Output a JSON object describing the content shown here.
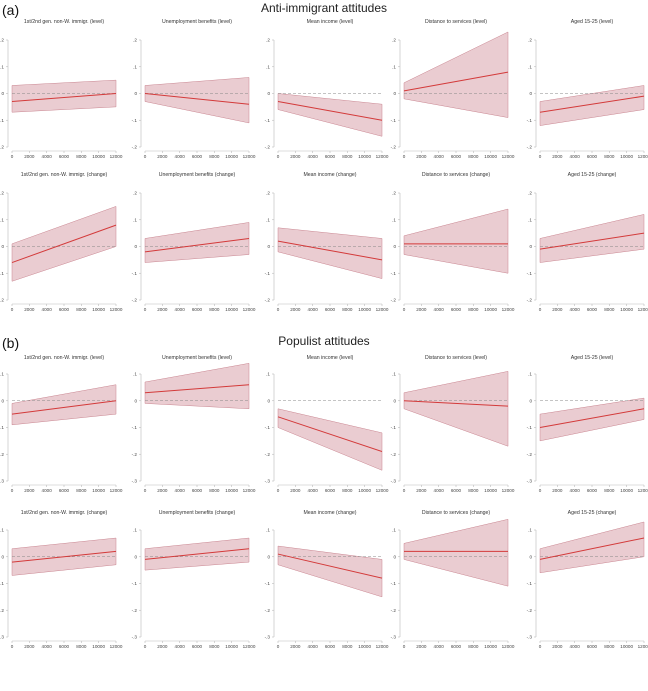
{
  "figure": {
    "sections": [
      {
        "label": "(a)",
        "title": "Anti-immigrant attitudes"
      },
      {
        "label": "(b)",
        "title": "Populist attitudes"
      }
    ]
  },
  "style": {
    "line_color": "#d33a3a",
    "band_color": "#d9a3ab",
    "band_stroke": "#c98590",
    "zero_line_color": "#888888",
    "axis_color": "#bbbbbb"
  },
  "chart_data": [
    {
      "type": "line",
      "section": "(a)",
      "title": "1st/2nd gen. non-W. immigr. (level)",
      "x": [
        0,
        12000
      ],
      "y": [
        -0.03,
        0.0
      ],
      "ci_lower": [
        -0.07,
        -0.05
      ],
      "ci_upper": [
        0.03,
        0.05
      ],
      "ylim": [
        -0.2,
        0.2
      ],
      "yticks": [
        -0.2,
        -0.1,
        0,
        0.1,
        0.2
      ],
      "ytick_labels": [
        "-.2",
        "-.1",
        "0",
        ".1",
        ".2"
      ],
      "xticks": [
        0,
        2000,
        4000,
        6000,
        8000,
        10000,
        12000
      ]
    },
    {
      "type": "line",
      "section": "(a)",
      "title": "Unemployment benefits (level)",
      "x": [
        0,
        12000
      ],
      "y": [
        0.0,
        -0.04
      ],
      "ci_lower": [
        -0.03,
        -0.11
      ],
      "ci_upper": [
        0.03,
        0.06
      ],
      "ylim": [
        -0.2,
        0.2
      ],
      "yticks": [
        -0.2,
        -0.1,
        0,
        0.1,
        0.2
      ],
      "ytick_labels": [
        "-.2",
        "-.1",
        "0",
        ".1",
        ".2"
      ],
      "xticks": [
        0,
        2000,
        4000,
        6000,
        8000,
        10000,
        12000
      ]
    },
    {
      "type": "line",
      "section": "(a)",
      "title": "Mean income (level)",
      "x": [
        0,
        12000
      ],
      "y": [
        -0.03,
        -0.1
      ],
      "ci_lower": [
        -0.06,
        -0.16
      ],
      "ci_upper": [
        0.0,
        -0.04
      ],
      "ylim": [
        -0.2,
        0.2
      ],
      "yticks": [
        -0.2,
        -0.1,
        0,
        0.1,
        0.2
      ],
      "ytick_labels": [
        "-.2",
        "-.1",
        "0",
        ".1",
        ".2"
      ],
      "xticks": [
        0,
        2000,
        4000,
        6000,
        8000,
        10000,
        12000
      ]
    },
    {
      "type": "line",
      "section": "(a)",
      "title": "Distance to services (level)",
      "x": [
        0,
        12000
      ],
      "y": [
        0.01,
        0.08
      ],
      "ci_lower": [
        -0.02,
        -0.09
      ],
      "ci_upper": [
        0.04,
        0.23
      ],
      "ylim": [
        -0.2,
        0.2
      ],
      "yticks": [
        -0.2,
        -0.1,
        0,
        0.1,
        0.2
      ],
      "ytick_labels": [
        "-.2",
        "-.1",
        "0",
        ".1",
        ".2"
      ],
      "xticks": [
        0,
        2000,
        4000,
        6000,
        8000,
        10000,
        12000
      ]
    },
    {
      "type": "line",
      "section": "(a)",
      "title": "Aged 15-25 (level)",
      "x": [
        0,
        12000
      ],
      "y": [
        -0.07,
        -0.01
      ],
      "ci_lower": [
        -0.12,
        -0.06
      ],
      "ci_upper": [
        -0.03,
        0.03
      ],
      "ylim": [
        -0.2,
        0.2
      ],
      "yticks": [
        -0.2,
        -0.1,
        0,
        0.1,
        0.2
      ],
      "ytick_labels": [
        "-.2",
        "-.1",
        "0",
        ".1",
        ".2"
      ],
      "xticks": [
        0,
        2000,
        4000,
        6000,
        8000,
        10000,
        12000
      ]
    },
    {
      "type": "line",
      "section": "(a)",
      "title": "1st/2nd gen. non-W. immigr. (change)",
      "x": [
        0,
        12000
      ],
      "y": [
        -0.06,
        0.08
      ],
      "ci_lower": [
        -0.13,
        0.0
      ],
      "ci_upper": [
        0.01,
        0.15
      ],
      "ylim": [
        -0.2,
        0.2
      ],
      "yticks": [
        -0.2,
        -0.1,
        0,
        0.1,
        0.2
      ],
      "ytick_labels": [
        "-.2",
        "-.1",
        "0",
        ".1",
        ".2"
      ],
      "xticks": [
        0,
        2000,
        4000,
        6000,
        8000,
        10000,
        12000
      ]
    },
    {
      "type": "line",
      "section": "(a)",
      "title": "Unemployment benefits (change)",
      "x": [
        0,
        12000
      ],
      "y": [
        -0.02,
        0.03
      ],
      "ci_lower": [
        -0.06,
        -0.03
      ],
      "ci_upper": [
        0.03,
        0.09
      ],
      "ylim": [
        -0.2,
        0.2
      ],
      "yticks": [
        -0.2,
        -0.1,
        0,
        0.1,
        0.2
      ],
      "ytick_labels": [
        "-.2",
        "-.1",
        "0",
        ".1",
        ".2"
      ],
      "xticks": [
        0,
        2000,
        4000,
        6000,
        8000,
        10000,
        12000
      ]
    },
    {
      "type": "line",
      "section": "(a)",
      "title": "Mean income (change)",
      "x": [
        0,
        12000
      ],
      "y": [
        0.02,
        -0.05
      ],
      "ci_lower": [
        -0.02,
        -0.12
      ],
      "ci_upper": [
        0.07,
        0.03
      ],
      "ylim": [
        -0.2,
        0.2
      ],
      "yticks": [
        -0.2,
        -0.1,
        0,
        0.1,
        0.2
      ],
      "ytick_labels": [
        "-.2",
        "-.1",
        "0",
        ".1",
        ".2"
      ],
      "xticks": [
        0,
        2000,
        4000,
        6000,
        8000,
        10000,
        12000
      ]
    },
    {
      "type": "line",
      "section": "(a)",
      "title": "Distance to services (change)",
      "x": [
        0,
        12000
      ],
      "y": [
        0.01,
        0.01
      ],
      "ci_lower": [
        -0.03,
        -0.1
      ],
      "ci_upper": [
        0.04,
        0.14
      ],
      "ylim": [
        -0.2,
        0.2
      ],
      "yticks": [
        -0.2,
        -0.1,
        0,
        0.1,
        0.2
      ],
      "ytick_labels": [
        "-.2",
        "-.1",
        "0",
        ".1",
        ".2"
      ],
      "xticks": [
        0,
        2000,
        4000,
        6000,
        8000,
        10000,
        12000
      ]
    },
    {
      "type": "line",
      "section": "(a)",
      "title": "Aged 15-25 (change)",
      "x": [
        0,
        12000
      ],
      "y": [
        -0.01,
        0.05
      ],
      "ci_lower": [
        -0.06,
        -0.01
      ],
      "ci_upper": [
        0.03,
        0.12
      ],
      "ylim": [
        -0.2,
        0.2
      ],
      "yticks": [
        -0.2,
        -0.1,
        0,
        0.1,
        0.2
      ],
      "ytick_labels": [
        "-.2",
        "-.1",
        "0",
        ".1",
        ".2"
      ],
      "xticks": [
        0,
        2000,
        4000,
        6000,
        8000,
        10000,
        12000
      ]
    },
    {
      "type": "line",
      "section": "(b)",
      "title": "1st/2nd gen. non-W. immigr. (level)",
      "x": [
        0,
        12000
      ],
      "y": [
        -0.05,
        0.0
      ],
      "ci_lower": [
        -0.09,
        -0.05
      ],
      "ci_upper": [
        -0.01,
        0.06
      ],
      "ylim": [
        -0.3,
        0.1
      ],
      "yticks": [
        -0.3,
        -0.2,
        -0.1,
        0,
        0.1
      ],
      "ytick_labels": [
        "-.3",
        "-.2",
        "-.1",
        "0",
        ".1"
      ],
      "xticks": [
        0,
        2000,
        4000,
        6000,
        8000,
        10000,
        12000
      ]
    },
    {
      "type": "line",
      "section": "(b)",
      "title": "Unemployment benefits (level)",
      "x": [
        0,
        12000
      ],
      "y": [
        0.03,
        0.06
      ],
      "ci_lower": [
        -0.01,
        -0.03
      ],
      "ci_upper": [
        0.07,
        0.14
      ],
      "ylim": [
        -0.3,
        0.1
      ],
      "yticks": [
        -0.3,
        -0.2,
        -0.1,
        0,
        0.1
      ],
      "ytick_labels": [
        "-.3",
        "-.2",
        "-.1",
        "0",
        ".1"
      ],
      "xticks": [
        0,
        2000,
        4000,
        6000,
        8000,
        10000,
        12000
      ]
    },
    {
      "type": "line",
      "section": "(b)",
      "title": "Mean income (level)",
      "x": [
        0,
        12000
      ],
      "y": [
        -0.06,
        -0.19
      ],
      "ci_lower": [
        -0.1,
        -0.26
      ],
      "ci_upper": [
        -0.03,
        -0.12
      ],
      "ylim": [
        -0.3,
        0.1
      ],
      "yticks": [
        -0.3,
        -0.2,
        -0.1,
        0,
        0.1
      ],
      "ytick_labels": [
        "-.3",
        "-.2",
        "-.1",
        "0",
        ".1"
      ],
      "xticks": [
        0,
        2000,
        4000,
        6000,
        8000,
        10000,
        12000
      ]
    },
    {
      "type": "line",
      "section": "(b)",
      "title": "Distance to services (level)",
      "x": [
        0,
        12000
      ],
      "y": [
        0.0,
        -0.02
      ],
      "ci_lower": [
        -0.03,
        -0.17
      ],
      "ci_upper": [
        0.03,
        0.11
      ],
      "ylim": [
        -0.3,
        0.1
      ],
      "yticks": [
        -0.3,
        -0.2,
        -0.1,
        0,
        0.1
      ],
      "ytick_labels": [
        "-.3",
        "-.2",
        "-.1",
        "0",
        ".1"
      ],
      "xticks": [
        0,
        2000,
        4000,
        6000,
        8000,
        10000,
        12000
      ]
    },
    {
      "type": "line",
      "section": "(b)",
      "title": "Aged 15-25 (level)",
      "x": [
        0,
        12000
      ],
      "y": [
        -0.1,
        -0.03
      ],
      "ci_lower": [
        -0.15,
        -0.07
      ],
      "ci_upper": [
        -0.05,
        0.01
      ],
      "ylim": [
        -0.3,
        0.1
      ],
      "yticks": [
        -0.3,
        -0.2,
        -0.1,
        0,
        0.1
      ],
      "ytick_labels": [
        "-.3",
        "-.2",
        "-.1",
        "0",
        ".1"
      ],
      "xticks": [
        0,
        2000,
        4000,
        6000,
        8000,
        10000,
        12000
      ]
    },
    {
      "type": "line",
      "section": "(b)",
      "title": "1st/2nd gen. non-W. immigr. (change)",
      "x": [
        0,
        12000
      ],
      "y": [
        -0.02,
        0.02
      ],
      "ci_lower": [
        -0.07,
        -0.03
      ],
      "ci_upper": [
        0.03,
        0.07
      ],
      "ylim": [
        -0.3,
        0.1
      ],
      "yticks": [
        -0.3,
        -0.2,
        -0.1,
        0,
        0.1
      ],
      "ytick_labels": [
        "-.3",
        "-.2",
        "-.1",
        "0",
        ".1"
      ],
      "xticks": [
        0,
        2000,
        4000,
        6000,
        8000,
        10000,
        12000
      ]
    },
    {
      "type": "line",
      "section": "(b)",
      "title": "Unemployment benefits (change)",
      "x": [
        0,
        12000
      ],
      "y": [
        -0.01,
        0.03
      ],
      "ci_lower": [
        -0.05,
        -0.02
      ],
      "ci_upper": [
        0.03,
        0.07
      ],
      "ylim": [
        -0.3,
        0.1
      ],
      "yticks": [
        -0.3,
        -0.2,
        -0.1,
        0,
        0.1
      ],
      "ytick_labels": [
        "-.3",
        "-.2",
        "-.1",
        "0",
        ".1"
      ],
      "xticks": [
        0,
        2000,
        4000,
        6000,
        8000,
        10000,
        12000
      ]
    },
    {
      "type": "line",
      "section": "(b)",
      "title": "Mean income (change)",
      "x": [
        0,
        12000
      ],
      "y": [
        0.01,
        -0.08
      ],
      "ci_lower": [
        -0.03,
        -0.15
      ],
      "ci_upper": [
        0.04,
        -0.01
      ],
      "ylim": [
        -0.3,
        0.1
      ],
      "yticks": [
        -0.3,
        -0.2,
        -0.1,
        0,
        0.1
      ],
      "ytick_labels": [
        "-.3",
        "-.2",
        "-.1",
        "0",
        ".1"
      ],
      "xticks": [
        0,
        2000,
        4000,
        6000,
        8000,
        10000,
        12000
      ]
    },
    {
      "type": "line",
      "section": "(b)",
      "title": "Distance to services (change)",
      "x": [
        0,
        12000
      ],
      "y": [
        0.02,
        0.02
      ],
      "ci_lower": [
        -0.01,
        -0.11
      ],
      "ci_upper": [
        0.05,
        0.14
      ],
      "ylim": [
        -0.3,
        0.1
      ],
      "yticks": [
        -0.3,
        -0.2,
        -0.1,
        0,
        0.1
      ],
      "ytick_labels": [
        "-.3",
        "-.2",
        "-.1",
        "0",
        ".1"
      ],
      "xticks": [
        0,
        2000,
        4000,
        6000,
        8000,
        10000,
        12000
      ]
    },
    {
      "type": "line",
      "section": "(b)",
      "title": "Aged 15-25 (change)",
      "x": [
        0,
        12000
      ],
      "y": [
        -0.01,
        0.07
      ],
      "ci_lower": [
        -0.06,
        0.0
      ],
      "ci_upper": [
        0.03,
        0.13
      ],
      "ylim": [
        -0.3,
        0.1
      ],
      "yticks": [
        -0.3,
        -0.2,
        -0.1,
        0,
        0.1
      ],
      "ytick_labels": [
        "-.3",
        "-.2",
        "-.1",
        "0",
        ".1"
      ],
      "xticks": [
        0,
        2000,
        4000,
        6000,
        8000,
        10000,
        12000
      ]
    }
  ]
}
